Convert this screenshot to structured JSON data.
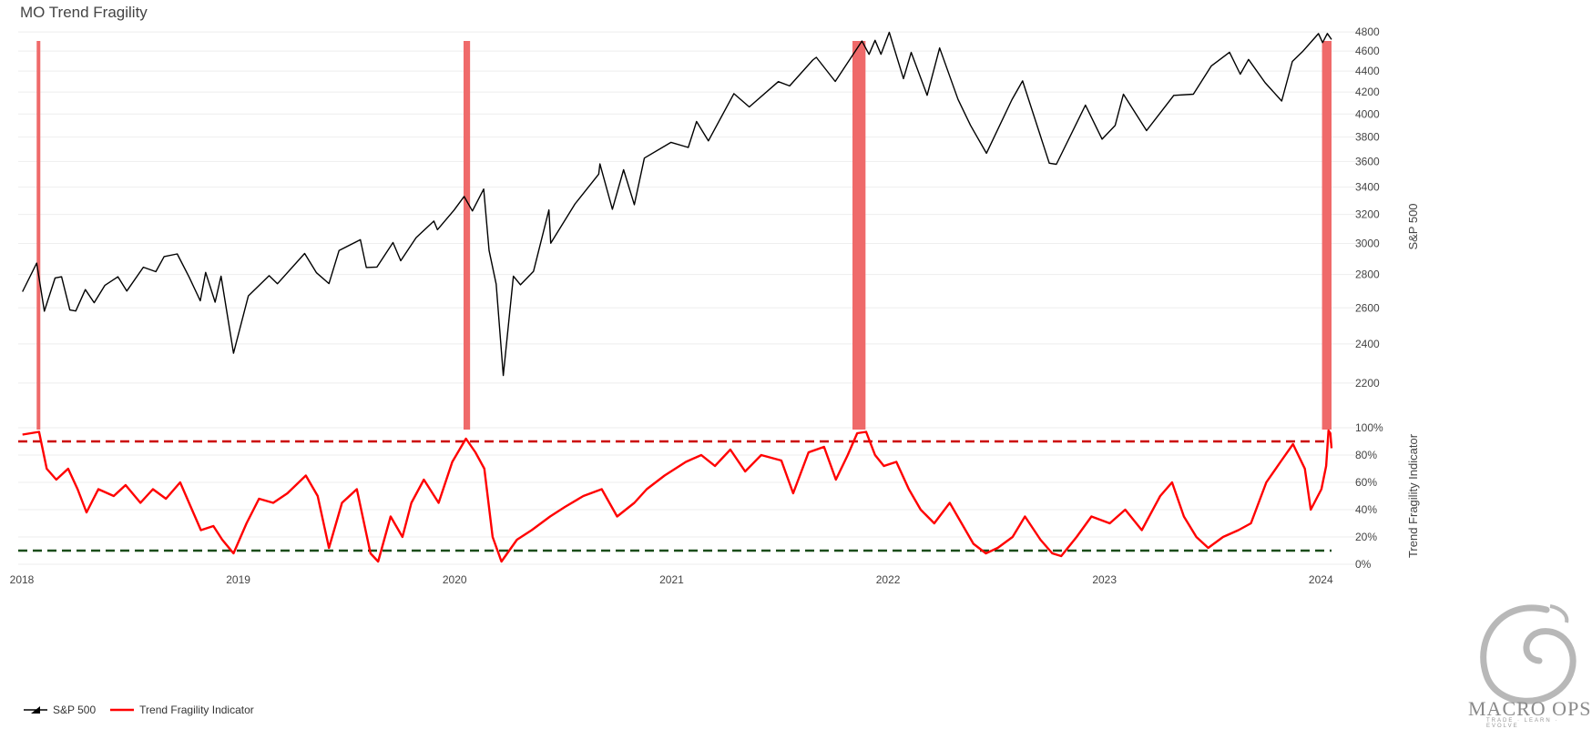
{
  "title": "MO Trend Fragility",
  "chart_data": {
    "type": "line",
    "x_range": [
      "2018-01-01",
      "2024-01-19"
    ],
    "x_ticks": [
      "2018",
      "2019",
      "2020",
      "2021",
      "2022",
      "2023",
      "2024"
    ],
    "series": [
      {
        "name": "S&P 500",
        "axis": "right-top",
        "color": "#000000",
        "points": [
          [
            "2018-01-02",
            2695
          ],
          [
            "2018-01-26",
            2872
          ],
          [
            "2018-02-08",
            2581
          ],
          [
            "2018-02-26",
            2779
          ],
          [
            "2018-03-09",
            2786
          ],
          [
            "2018-03-23",
            2588
          ],
          [
            "2018-04-02",
            2582
          ],
          [
            "2018-04-18",
            2708
          ],
          [
            "2018-05-03",
            2630
          ],
          [
            "2018-05-21",
            2733
          ],
          [
            "2018-06-12",
            2786
          ],
          [
            "2018-06-27",
            2699
          ],
          [
            "2018-07-25",
            2846
          ],
          [
            "2018-08-15",
            2818
          ],
          [
            "2018-08-29",
            2914
          ],
          [
            "2018-09-20",
            2931
          ],
          [
            "2018-10-10",
            2785
          ],
          [
            "2018-10-29",
            2641
          ],
          [
            "2018-11-07",
            2813
          ],
          [
            "2018-11-23",
            2633
          ],
          [
            "2018-12-03",
            2790
          ],
          [
            "2018-12-24",
            2351
          ],
          [
            "2019-01-18",
            2670
          ],
          [
            "2019-02-22",
            2793
          ],
          [
            "2019-03-08",
            2743
          ],
          [
            "2019-04-23",
            2934
          ],
          [
            "2019-05-13",
            2811
          ],
          [
            "2019-06-03",
            2744
          ],
          [
            "2019-06-20",
            2954
          ],
          [
            "2019-07-26",
            3025
          ],
          [
            "2019-08-05",
            2844
          ],
          [
            "2019-08-23",
            2847
          ],
          [
            "2019-09-19",
            3006
          ],
          [
            "2019-10-02",
            2887
          ],
          [
            "2019-10-28",
            3039
          ],
          [
            "2019-11-27",
            3153
          ],
          [
            "2019-12-03",
            3093
          ],
          [
            "2019-12-31",
            3231
          ],
          [
            "2020-01-17",
            3330
          ],
          [
            "2020-01-31",
            3225
          ],
          [
            "2020-02-19",
            3386
          ],
          [
            "2020-02-28",
            2954
          ],
          [
            "2020-03-11",
            2741
          ],
          [
            "2020-03-23",
            2237
          ],
          [
            "2020-04-09",
            2790
          ],
          [
            "2020-04-21",
            2737
          ],
          [
            "2020-05-13",
            2820
          ],
          [
            "2020-06-08",
            3232
          ],
          [
            "2020-06-11",
            3002
          ],
          [
            "2020-07-22",
            3276
          ],
          [
            "2020-08-31",
            3500
          ],
          [
            "2020-09-02",
            3580
          ],
          [
            "2020-09-23",
            3237
          ],
          [
            "2020-10-12",
            3534
          ],
          [
            "2020-10-30",
            3270
          ],
          [
            "2020-11-16",
            3627
          ],
          [
            "2020-12-31",
            3756
          ],
          [
            "2021-01-29",
            3714
          ],
          [
            "2021-02-12",
            3934
          ],
          [
            "2021-03-04",
            3768
          ],
          [
            "2021-04-16",
            4185
          ],
          [
            "2021-05-12",
            4063
          ],
          [
            "2021-06-30",
            4298
          ],
          [
            "2021-07-19",
            4258
          ],
          [
            "2021-08-27",
            4509
          ],
          [
            "2021-09-02",
            4537
          ],
          [
            "2021-10-04",
            4300
          ],
          [
            "2021-11-18",
            4704
          ],
          [
            "2021-11-30",
            4567
          ],
          [
            "2021-12-10",
            4712
          ],
          [
            "2021-12-20",
            4568
          ],
          [
            "2022-01-03",
            4796
          ],
          [
            "2022-01-27",
            4327
          ],
          [
            "2022-02-09",
            4587
          ],
          [
            "2022-03-08",
            4170
          ],
          [
            "2022-03-29",
            4632
          ],
          [
            "2022-04-29",
            4132
          ],
          [
            "2022-05-20",
            3901
          ],
          [
            "2022-06-16",
            3666
          ],
          [
            "2022-07-29",
            4130
          ],
          [
            "2022-08-16",
            4305
          ],
          [
            "2022-09-30",
            3586
          ],
          [
            "2022-10-12",
            3577
          ],
          [
            "2022-11-30",
            4080
          ],
          [
            "2022-12-28",
            3783
          ],
          [
            "2023-01-19",
            3899
          ],
          [
            "2023-02-02",
            4180
          ],
          [
            "2023-03-13",
            3855
          ],
          [
            "2023-04-28",
            4169
          ],
          [
            "2023-05-31",
            4180
          ],
          [
            "2023-06-30",
            4450
          ],
          [
            "2023-07-31",
            4589
          ],
          [
            "2023-08-18",
            4370
          ],
          [
            "2023-09-01",
            4516
          ],
          [
            "2023-09-29",
            4288
          ],
          [
            "2023-10-27",
            4117
          ],
          [
            "2023-11-14",
            4496
          ],
          [
            "2023-12-01",
            4594
          ],
          [
            "2023-12-28",
            4783
          ],
          [
            "2024-01-04",
            4688
          ],
          [
            "2024-01-12",
            4784
          ],
          [
            "2024-01-19",
            4720
          ]
        ]
      },
      {
        "name": "Trend Fragility Indicator",
        "axis": "right-bottom",
        "color": "#ff0000",
        "points": [
          [
            "2018-01-02",
            95
          ],
          [
            "2018-01-30",
            97
          ],
          [
            "2018-02-12",
            70
          ],
          [
            "2018-02-28",
            62
          ],
          [
            "2018-03-20",
            70
          ],
          [
            "2018-04-05",
            55
          ],
          [
            "2018-04-20",
            38
          ],
          [
            "2018-05-10",
            55
          ],
          [
            "2018-06-05",
            50
          ],
          [
            "2018-06-25",
            58
          ],
          [
            "2018-07-20",
            45
          ],
          [
            "2018-08-10",
            55
          ],
          [
            "2018-09-01",
            48
          ],
          [
            "2018-09-25",
            60
          ],
          [
            "2018-10-15",
            40
          ],
          [
            "2018-10-30",
            25
          ],
          [
            "2018-11-20",
            28
          ],
          [
            "2018-12-05",
            18
          ],
          [
            "2018-12-24",
            8
          ],
          [
            "2019-01-15",
            30
          ],
          [
            "2019-02-05",
            48
          ],
          [
            "2019-03-01",
            45
          ],
          [
            "2019-03-25",
            52
          ],
          [
            "2019-04-25",
            65
          ],
          [
            "2019-05-15",
            50
          ],
          [
            "2019-06-03",
            12
          ],
          [
            "2019-06-25",
            45
          ],
          [
            "2019-07-20",
            55
          ],
          [
            "2019-08-12",
            8
          ],
          [
            "2019-08-25",
            2
          ],
          [
            "2019-09-15",
            35
          ],
          [
            "2019-10-05",
            20
          ],
          [
            "2019-10-20",
            45
          ],
          [
            "2019-11-10",
            62
          ],
          [
            "2019-12-05",
            45
          ],
          [
            "2019-12-28",
            75
          ],
          [
            "2020-01-20",
            92
          ],
          [
            "2020-02-05",
            82
          ],
          [
            "2020-02-20",
            70
          ],
          [
            "2020-03-05",
            20
          ],
          [
            "2020-03-20",
            2
          ],
          [
            "2020-04-15",
            18
          ],
          [
            "2020-05-10",
            25
          ],
          [
            "2020-06-10",
            35
          ],
          [
            "2020-07-05",
            42
          ],
          [
            "2020-08-05",
            50
          ],
          [
            "2020-09-05",
            55
          ],
          [
            "2020-10-01",
            35
          ],
          [
            "2020-10-30",
            45
          ],
          [
            "2020-11-20",
            55
          ],
          [
            "2020-12-20",
            65
          ],
          [
            "2021-01-25",
            75
          ],
          [
            "2021-02-20",
            80
          ],
          [
            "2021-03-15",
            72
          ],
          [
            "2021-04-10",
            84
          ],
          [
            "2021-05-05",
            68
          ],
          [
            "2021-06-01",
            80
          ],
          [
            "2021-07-05",
            76
          ],
          [
            "2021-07-25",
            52
          ],
          [
            "2021-08-20",
            82
          ],
          [
            "2021-09-15",
            86
          ],
          [
            "2021-10-05",
            62
          ],
          [
            "2021-10-25",
            80
          ],
          [
            "2021-11-10",
            96
          ],
          [
            "2021-11-25",
            97
          ],
          [
            "2021-12-10",
            80
          ],
          [
            "2021-12-25",
            72
          ],
          [
            "2022-01-15",
            75
          ],
          [
            "2022-02-05",
            55
          ],
          [
            "2022-02-25",
            40
          ],
          [
            "2022-03-20",
            30
          ],
          [
            "2022-04-15",
            45
          ],
          [
            "2022-05-05",
            30
          ],
          [
            "2022-05-25",
            15
          ],
          [
            "2022-06-15",
            8
          ],
          [
            "2022-07-05",
            12
          ],
          [
            "2022-07-30",
            20
          ],
          [
            "2022-08-20",
            35
          ],
          [
            "2022-09-15",
            18
          ],
          [
            "2022-10-05",
            8
          ],
          [
            "2022-10-20",
            6
          ],
          [
            "2022-11-15",
            20
          ],
          [
            "2022-12-10",
            35
          ],
          [
            "2023-01-10",
            30
          ],
          [
            "2023-02-05",
            40
          ],
          [
            "2023-03-05",
            25
          ],
          [
            "2023-04-05",
            50
          ],
          [
            "2023-04-25",
            60
          ],
          [
            "2023-05-15",
            35
          ],
          [
            "2023-06-05",
            20
          ],
          [
            "2023-06-25",
            12
          ],
          [
            "2023-07-20",
            20
          ],
          [
            "2023-08-15",
            25
          ],
          [
            "2023-09-05",
            30
          ],
          [
            "2023-10-01",
            60
          ],
          [
            "2023-10-25",
            75
          ],
          [
            "2023-11-15",
            88
          ],
          [
            "2023-12-05",
            70
          ],
          [
            "2023-12-15",
            40
          ],
          [
            "2024-01-02",
            55
          ],
          [
            "2024-01-10",
            72
          ],
          [
            "2024-01-14",
            98
          ],
          [
            "2024-01-17",
            96
          ],
          [
            "2024-01-19",
            85
          ]
        ]
      }
    ],
    "reference_lines": [
      {
        "axis": "right-bottom",
        "value": 90,
        "color": "#cc0000",
        "style": "dashed"
      },
      {
        "axis": "right-bottom",
        "value": 10,
        "color": "#1a4d1a",
        "style": "dashed"
      }
    ],
    "highlight_periods": [
      {
        "start": "2018-01-26",
        "end": "2018-02-01",
        "color": "#ef6a6a"
      },
      {
        "start": "2020-01-16",
        "end": "2020-01-27",
        "color": "#ef6a6a"
      },
      {
        "start": "2021-11-02",
        "end": "2021-11-24",
        "color": "#ef6a6a"
      },
      {
        "start": "2024-01-03",
        "end": "2024-01-19",
        "color": "#ef6a6a"
      }
    ],
    "y_axes": {
      "right-top": {
        "label": "S&P 500",
        "range": [
          2000,
          4850
        ],
        "ticks": [
          "2200",
          "2400",
          "2600",
          "2800",
          "3000",
          "3200",
          "3400",
          "3600",
          "3800",
          "4000",
          "4200",
          "4400",
          "4600",
          "4800"
        ]
      },
      "right-bottom": {
        "label": "Trend Fragility Indicator",
        "range": [
          0,
          100
        ],
        "ticks": [
          "0%",
          "20%",
          "40%",
          "60%",
          "80%",
          "100%"
        ]
      }
    },
    "grid": true,
    "legend_position": "bottom-left"
  },
  "legend": [
    {
      "label": "S&P 500",
      "color": "#000000"
    },
    {
      "label": "Trend Fragility Indicator",
      "color": "#ff0000"
    }
  ],
  "watermark": {
    "text": "MACRO OPS",
    "subtext": "TRADE · LEARN · EVOLVE"
  }
}
